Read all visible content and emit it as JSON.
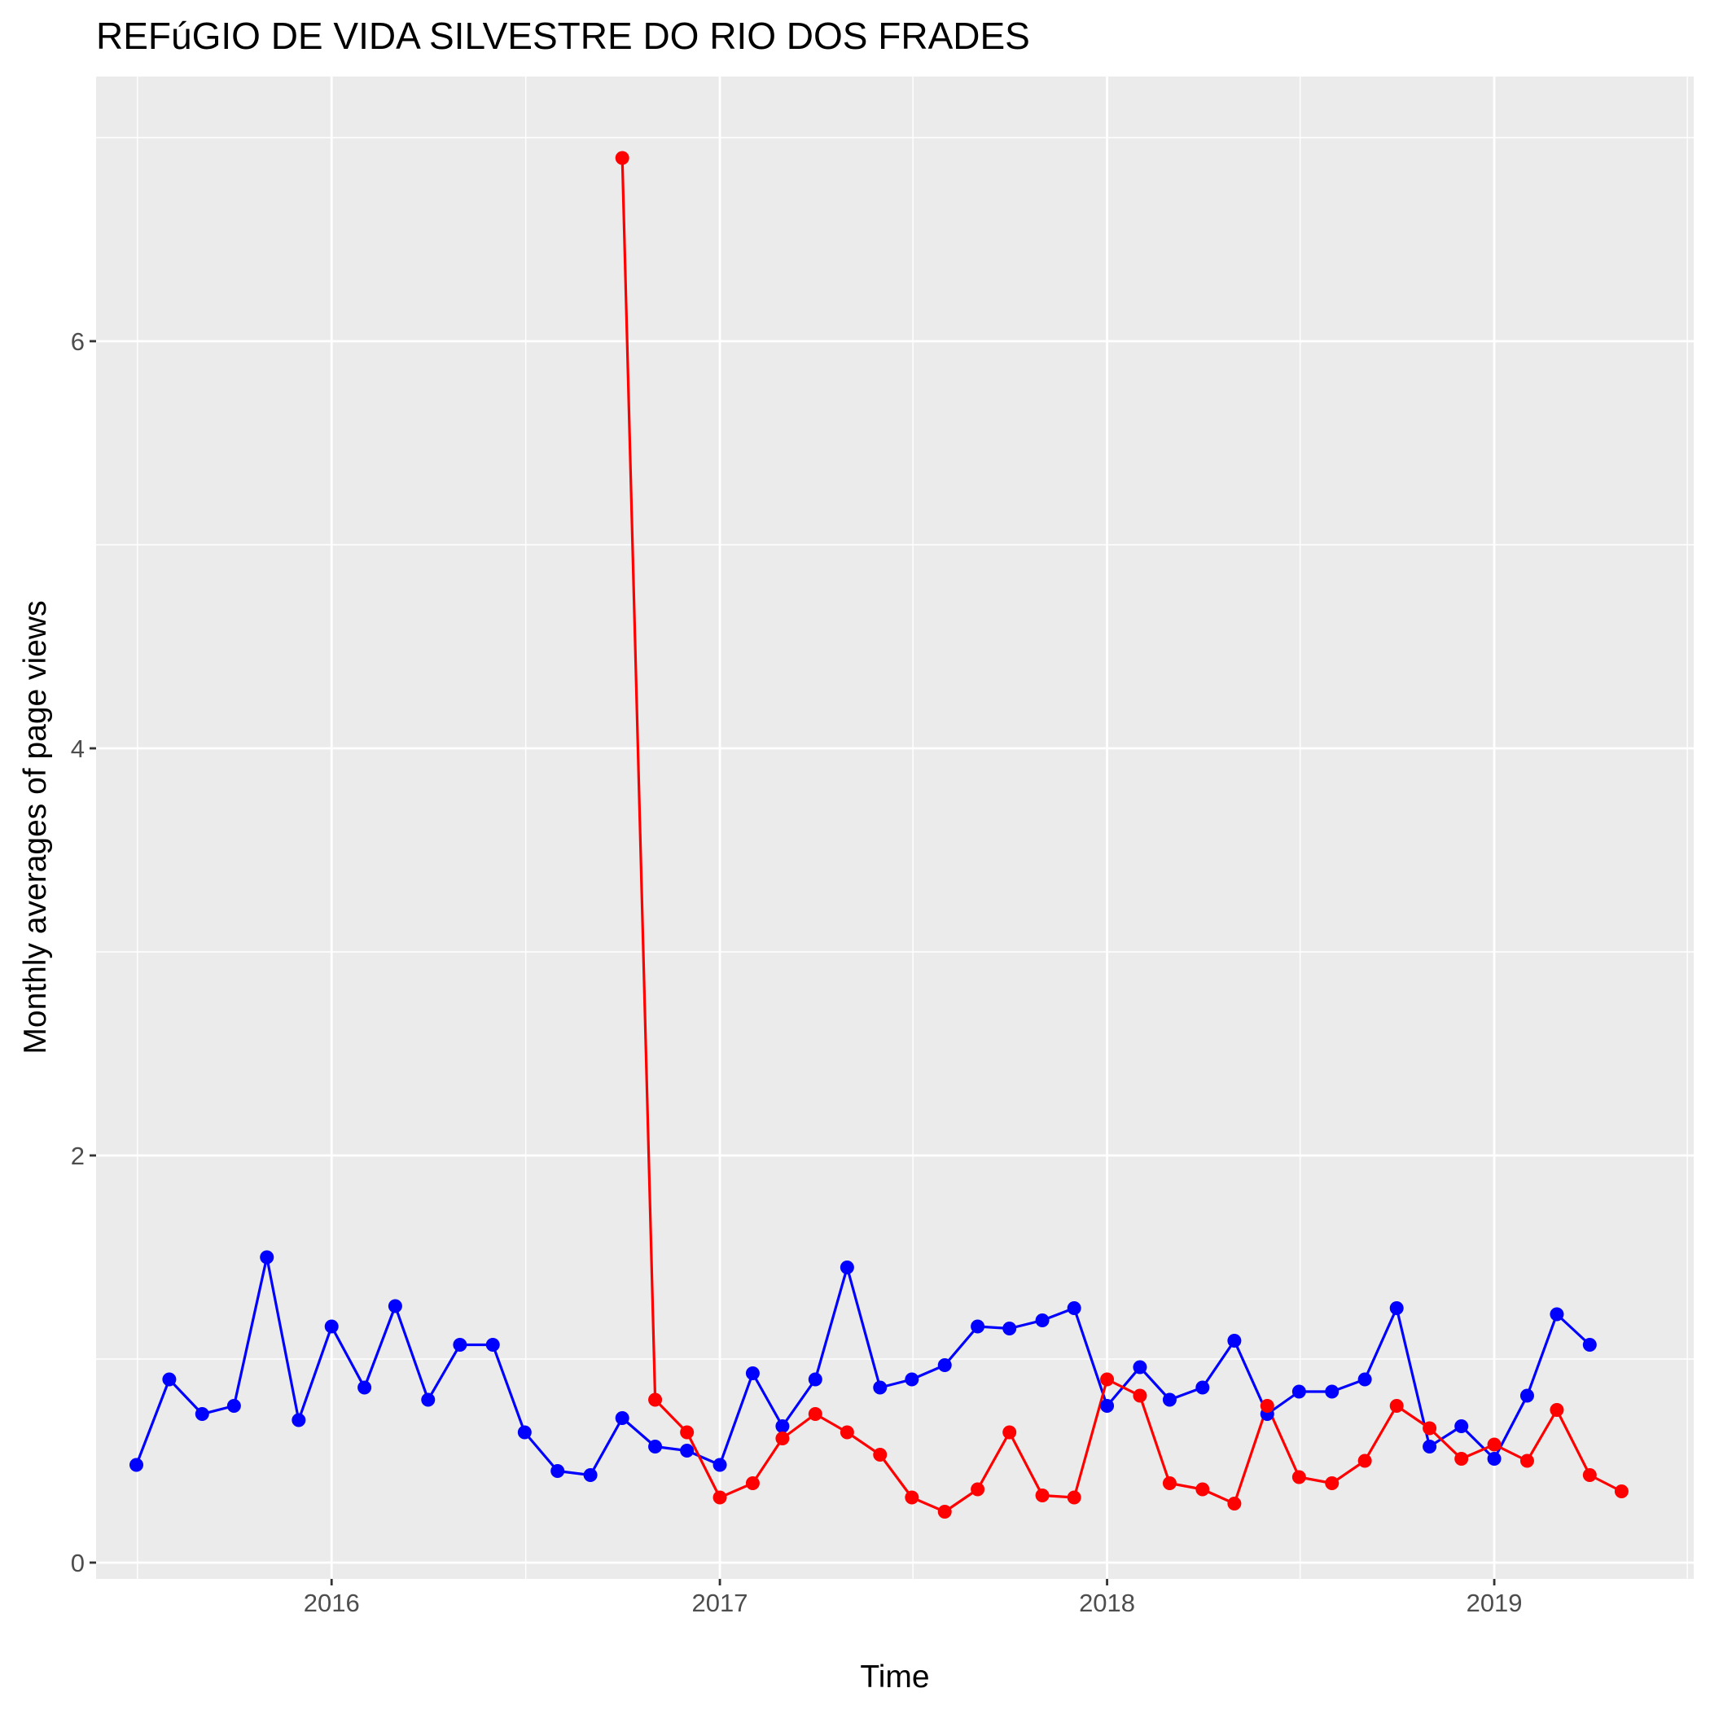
{
  "chart_data": {
    "type": "line",
    "title": "REFúGIO DE VIDA SILVESTRE DO RIO DOS FRADES",
    "xlabel": "Time",
    "ylabel": "Monthly averages of page views",
    "x_ticks": [
      "2016",
      "2017",
      "2018",
      "2019"
    ],
    "y_ticks": [
      "0",
      "2",
      "4",
      "6"
    ],
    "ylim": [
      -0.08,
      7.3
    ],
    "xlim": [
      "2015-05-24",
      "2019-07-08"
    ],
    "grid": true,
    "legend": "none",
    "series": [
      {
        "color": "#0000ff",
        "x": [
          "2015-07-01",
          "2015-08-01",
          "2015-09-01",
          "2015-10-01",
          "2015-11-01",
          "2015-12-01",
          "2016-01-01",
          "2016-02-01",
          "2016-03-01",
          "2016-04-01",
          "2016-05-01",
          "2016-06-01",
          "2016-07-01",
          "2016-08-01",
          "2016-09-01",
          "2016-10-01",
          "2016-11-01",
          "2016-12-01",
          "2017-01-01",
          "2017-02-01",
          "2017-03-01",
          "2017-04-01",
          "2017-05-01",
          "2017-06-01",
          "2017-07-01",
          "2017-08-01",
          "2017-09-01",
          "2017-10-01",
          "2017-11-01",
          "2017-12-01",
          "2018-01-01",
          "2018-02-01",
          "2018-03-01",
          "2018-04-01",
          "2018-05-01",
          "2018-06-01",
          "2018-07-01",
          "2018-08-01",
          "2018-09-01",
          "2018-10-01",
          "2018-11-01",
          "2018-12-01",
          "2019-01-01",
          "2019-02-01",
          "2019-03-01",
          "2019-04-01"
        ],
        "y": [
          0.48,
          0.9,
          0.73,
          0.77,
          1.5,
          0.7,
          1.16,
          0.86,
          1.26,
          0.8,
          1.07,
          1.07,
          0.64,
          0.45,
          0.43,
          0.71,
          0.57,
          0.55,
          0.48,
          0.93,
          0.67,
          0.9,
          1.45,
          0.86,
          0.9,
          0.97,
          1.16,
          1.15,
          1.19,
          1.25,
          0.77,
          0.96,
          0.8,
          0.86,
          1.09,
          0.73,
          0.84,
          0.84,
          0.9,
          1.25,
          0.57,
          0.67,
          0.51,
          0.82,
          1.22,
          1.07
        ]
      },
      {
        "color": "#ff0000",
        "x": [
          "2016-10-01",
          "2016-11-01",
          "2016-12-01",
          "2017-01-01",
          "2017-02-01",
          "2017-03-01",
          "2017-04-01",
          "2017-05-01",
          "2017-06-01",
          "2017-07-01",
          "2017-08-01",
          "2017-09-01",
          "2017-10-01",
          "2017-11-01",
          "2017-12-01",
          "2018-01-01",
          "2018-02-01",
          "2018-03-01",
          "2018-04-01",
          "2018-05-01",
          "2018-06-01",
          "2018-07-01",
          "2018-08-01",
          "2018-09-01",
          "2018-10-01",
          "2018-11-01",
          "2018-12-01",
          "2019-01-01",
          "2019-02-01",
          "2019-03-01",
          "2019-04-01",
          "2019-05-01"
        ],
        "y": [
          6.9,
          0.8,
          0.64,
          0.32,
          0.39,
          0.61,
          0.73,
          0.64,
          0.53,
          0.32,
          0.25,
          0.36,
          0.64,
          0.33,
          0.32,
          0.9,
          0.82,
          0.39,
          0.36,
          0.29,
          0.77,
          0.42,
          0.39,
          0.5,
          0.77,
          0.66,
          0.51,
          0.58,
          0.5,
          0.75,
          0.43,
          0.35
        ]
      }
    ]
  }
}
